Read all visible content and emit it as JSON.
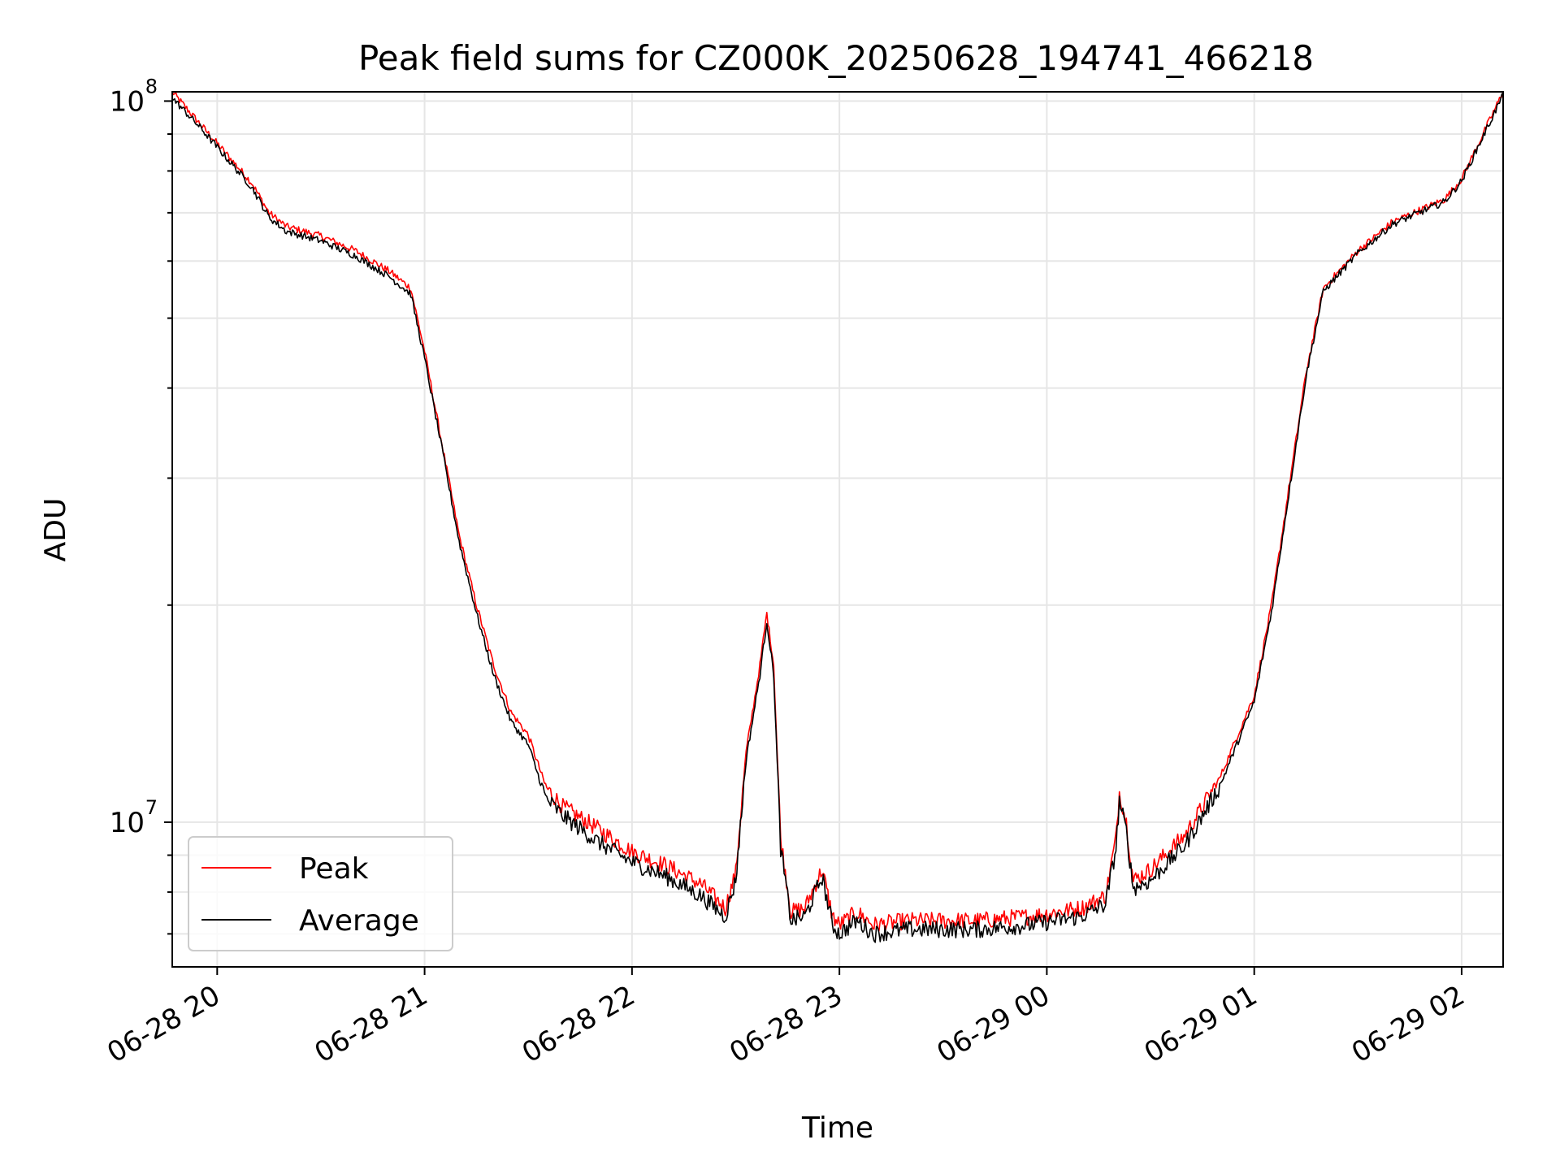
{
  "chart_data": {
    "type": "line",
    "title": "Peak field sums for CZ000K_20250628_194741_466218",
    "xlabel": "Time",
    "ylabel": "ADU",
    "yscale": "log",
    "ylim": [
      6300000,
      103000000
    ],
    "xlim": [
      "2025-06-28 19:47",
      "2025-06-29 02:12"
    ],
    "xticks": [
      {
        "label": "06-28 20",
        "value": "2025-06-28 20:00"
      },
      {
        "label": "06-28 21",
        "value": "2025-06-28 21:00"
      },
      {
        "label": "06-28 22",
        "value": "2025-06-28 22:00"
      },
      {
        "label": "06-28 23",
        "value": "2025-06-28 23:00"
      },
      {
        "label": "06-29 00",
        "value": "2025-06-29 00:00"
      },
      {
        "label": "06-29 01",
        "value": "2025-06-29 01:00"
      },
      {
        "label": "06-29 02",
        "value": "2025-06-29 02:00"
      }
    ],
    "yticks": [
      {
        "base": "10",
        "exp": "7",
        "value": 10000000
      },
      {
        "base": "10",
        "exp": "8",
        "value": 100000000
      }
    ],
    "grid": true,
    "legend_position": "lower-left",
    "series": [
      {
        "name": "Peak",
        "color": "#ff0000",
        "points": [
          [
            "2025-06-28 19:47",
            103000000
          ],
          [
            "2025-06-28 19:55",
            93000000
          ],
          [
            "2025-06-28 20:05",
            82000000
          ],
          [
            "2025-06-28 20:10",
            77000000
          ],
          [
            "2025-06-28 20:15",
            70000000
          ],
          [
            "2025-06-28 20:20",
            67000000
          ],
          [
            "2025-06-28 20:30",
            65000000
          ],
          [
            "2025-06-28 20:40",
            62000000
          ],
          [
            "2025-06-28 20:50",
            58000000
          ],
          [
            "2025-06-28 20:56",
            55000000
          ],
          [
            "2025-06-28 21:00",
            45000000
          ],
          [
            "2025-06-28 21:05",
            33500000
          ],
          [
            "2025-06-28 21:10",
            25000000
          ],
          [
            "2025-06-28 21:15",
            20000000
          ],
          [
            "2025-06-28 21:20",
            16500000
          ],
          [
            "2025-06-28 21:25",
            14200000
          ],
          [
            "2025-06-28 21:30",
            13200000
          ],
          [
            "2025-06-28 21:35",
            11200000
          ],
          [
            "2025-06-28 21:40",
            10500000
          ],
          [
            "2025-06-28 21:50",
            9800000
          ],
          [
            "2025-06-28 22:00",
            9100000
          ],
          [
            "2025-06-28 22:10",
            8700000
          ],
          [
            "2025-06-28 22:20",
            8200000
          ],
          [
            "2025-06-28 22:27",
            7600000
          ],
          [
            "2025-06-28 22:30",
            8500000
          ],
          [
            "2025-06-28 22:33",
            12500000
          ],
          [
            "2025-06-28 22:37",
            16500000
          ],
          [
            "2025-06-28 22:39",
            19500000
          ],
          [
            "2025-06-28 22:41",
            16500000
          ],
          [
            "2025-06-28 22:43",
            9500000
          ],
          [
            "2025-06-28 22:46",
            7500000
          ],
          [
            "2025-06-28 22:50",
            7600000
          ],
          [
            "2025-06-28 22:55",
            8600000
          ],
          [
            "2025-06-28 22:58",
            7400000
          ],
          [
            "2025-06-28 23:00",
            7200000
          ],
          [
            "2025-06-28 23:05",
            7500000
          ],
          [
            "2025-06-28 23:10",
            7200000
          ],
          [
            "2025-06-28 23:20",
            7300000
          ],
          [
            "2025-06-28 23:40",
            7300000
          ],
          [
            "2025-06-28 23:55",
            7400000
          ],
          [
            "2025-06-29 00:10",
            7600000
          ],
          [
            "2025-06-29 00:17",
            7900000
          ],
          [
            "2025-06-29 00:20",
            9500000
          ],
          [
            "2025-06-29 00:21",
            11000000
          ],
          [
            "2025-06-29 00:23",
            10000000
          ],
          [
            "2025-06-29 00:25",
            8300000
          ],
          [
            "2025-06-29 00:30",
            8600000
          ],
          [
            "2025-06-29 00:40",
            9600000
          ],
          [
            "2025-06-29 00:50",
            11500000
          ],
          [
            "2025-06-29 01:00",
            15000000
          ],
          [
            "2025-06-29 01:05",
            20000000
          ],
          [
            "2025-06-29 01:10",
            29000000
          ],
          [
            "2025-06-29 01:15",
            42000000
          ],
          [
            "2025-06-29 01:20",
            55000000
          ],
          [
            "2025-06-29 01:30",
            62000000
          ],
          [
            "2025-06-29 01:40",
            68000000
          ],
          [
            "2025-06-29 01:55",
            73000000
          ],
          [
            "2025-06-29 02:00",
            78000000
          ],
          [
            "2025-06-29 02:12",
            103000000
          ]
        ]
      },
      {
        "name": "Average",
        "color": "#000000",
        "points": [
          [
            "2025-06-28 19:47",
            101000000
          ],
          [
            "2025-06-28 19:55",
            92000000
          ],
          [
            "2025-06-28 20:05",
            81000000
          ],
          [
            "2025-06-28 20:10",
            76000000
          ],
          [
            "2025-06-28 20:15",
            69000000
          ],
          [
            "2025-06-28 20:20",
            66000000
          ],
          [
            "2025-06-28 20:30",
            64000000
          ],
          [
            "2025-06-28 20:40",
            61000000
          ],
          [
            "2025-06-28 20:50",
            57000000
          ],
          [
            "2025-06-28 20:56",
            54000000
          ],
          [
            "2025-06-28 21:00",
            44000000
          ],
          [
            "2025-06-28 21:05",
            33000000
          ],
          [
            "2025-06-28 21:10",
            24500000
          ],
          [
            "2025-06-28 21:15",
            19500000
          ],
          [
            "2025-06-28 21:20",
            16000000
          ],
          [
            "2025-06-28 21:25",
            13800000
          ],
          [
            "2025-06-28 21:30",
            12800000
          ],
          [
            "2025-06-28 21:35",
            10800000
          ],
          [
            "2025-06-28 21:40",
            10200000
          ],
          [
            "2025-06-28 21:50",
            9400000
          ],
          [
            "2025-06-28 22:00",
            8800000
          ],
          [
            "2025-06-28 22:10",
            8400000
          ],
          [
            "2025-06-28 22:20",
            7900000
          ],
          [
            "2025-06-28 22:27",
            7400000
          ],
          [
            "2025-06-28 22:30",
            8300000
          ],
          [
            "2025-06-28 22:33",
            12200000
          ],
          [
            "2025-06-28 22:37",
            16000000
          ],
          [
            "2025-06-28 22:39",
            19000000
          ],
          [
            "2025-06-28 22:41",
            16000000
          ],
          [
            "2025-06-28 22:43",
            9200000
          ],
          [
            "2025-06-28 22:46",
            7300000
          ],
          [
            "2025-06-28 22:50",
            7400000
          ],
          [
            "2025-06-28 22:55",
            8400000
          ],
          [
            "2025-06-28 22:58",
            7200000
          ],
          [
            "2025-06-28 23:00",
            7000000
          ],
          [
            "2025-06-28 23:05",
            7300000
          ],
          [
            "2025-06-28 23:10",
            7000000
          ],
          [
            "2025-06-28 23:20",
            7100000
          ],
          [
            "2025-06-28 23:40",
            7100000
          ],
          [
            "2025-06-28 23:55",
            7200000
          ],
          [
            "2025-06-29 00:10",
            7400000
          ],
          [
            "2025-06-29 00:17",
            7700000
          ],
          [
            "2025-06-29 00:20",
            9200000
          ],
          [
            "2025-06-29 00:21",
            10700000
          ],
          [
            "2025-06-29 00:23",
            9700000
          ],
          [
            "2025-06-29 00:25",
            8100000
          ],
          [
            "2025-06-29 00:30",
            8300000
          ],
          [
            "2025-06-29 00:40",
            9300000
          ],
          [
            "2025-06-29 00:50",
            11200000
          ],
          [
            "2025-06-29 01:00",
            14700000
          ],
          [
            "2025-06-29 01:05",
            19600000
          ],
          [
            "2025-06-29 01:10",
            28500000
          ],
          [
            "2025-06-29 01:15",
            41500000
          ],
          [
            "2025-06-29 01:20",
            54500000
          ],
          [
            "2025-06-29 01:30",
            61500000
          ],
          [
            "2025-06-29 01:40",
            67500000
          ],
          [
            "2025-06-29 01:55",
            72500000
          ],
          [
            "2025-06-29 02:00",
            77500000
          ],
          [
            "2025-06-29 02:12",
            102000000
          ]
        ]
      }
    ]
  }
}
